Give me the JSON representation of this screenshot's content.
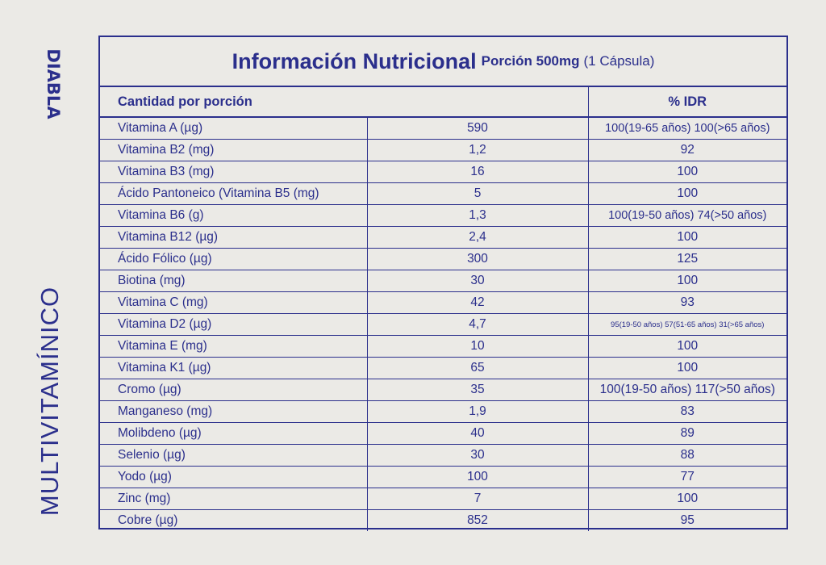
{
  "brand": "DIABLA",
  "side_title": "MULTIVITAMÍNICO",
  "header": {
    "title": "Información Nutricional",
    "portion_bold": "Porción 500mg",
    "portion_rest": "(1 Cápsula)"
  },
  "columns": {
    "amount_label": "Cantidad por porción",
    "idr_label": "% IDR"
  },
  "rows": [
    {
      "name": "Vitamina A (µg)",
      "qty": "590",
      "idr": "100(19-65 años) 100(>65 años)",
      "size": "small"
    },
    {
      "name": "Vitamina B2 (mg)",
      "qty": "1,2",
      "idr": "92",
      "size": ""
    },
    {
      "name": "Vitamina B3 (mg)",
      "qty": "16",
      "idr": "100",
      "size": ""
    },
    {
      "name": "Ácido Pantoneico (Vitamina B5 (mg)",
      "qty": "5",
      "idr": "100",
      "size": ""
    },
    {
      "name": "Vitamina B6 (g)",
      "qty": "1,3",
      "idr": "100(19-50 años) 74(>50 años)",
      "size": "small"
    },
    {
      "name": "Vitamina B12 (µg)",
      "qty": "2,4",
      "idr": "100",
      "size": ""
    },
    {
      "name": "Ácido Fólico (µg)",
      "qty": "300",
      "idr": "125",
      "size": ""
    },
    {
      "name": "Biotina (mg)",
      "qty": "30",
      "idr": "100",
      "size": ""
    },
    {
      "name": "Vitamina C (mg)",
      "qty": "42",
      "idr": "93",
      "size": ""
    },
    {
      "name": "Vitamina D2 (µg)",
      "qty": "4,7",
      "idr": "95(19-50 años) 57(51-65 años) 31(>65 años)",
      "size": "tiny"
    },
    {
      "name": "Vitamina E (mg)",
      "qty": "10",
      "idr": "100",
      "size": ""
    },
    {
      "name": "Vitamina K1 (µg)",
      "qty": "65",
      "idr": "100",
      "size": ""
    },
    {
      "name": "Cromo (µg)",
      "qty": "35",
      "idr": "100(19-50 años) 117(>50 años)",
      "size": ""
    },
    {
      "name": "Manganeso (mg)",
      "qty": "1,9",
      "idr": "83",
      "size": ""
    },
    {
      "name": "Molibdeno (µg)",
      "qty": "40",
      "idr": "89",
      "size": ""
    },
    {
      "name": "Selenio (µg)",
      "qty": "30",
      "idr": "88",
      "size": ""
    },
    {
      "name": "Yodo (µg)",
      "qty": "100",
      "idr": "77",
      "size": ""
    },
    {
      "name": "Zinc (mg)",
      "qty": "7",
      "idr": "100",
      "size": ""
    },
    {
      "name": "Cobre (µg)",
      "qty": "852",
      "idr": "95",
      "size": ""
    }
  ],
  "colors": {
    "ink": "#2b2f8c",
    "background": "#ebeae6"
  }
}
